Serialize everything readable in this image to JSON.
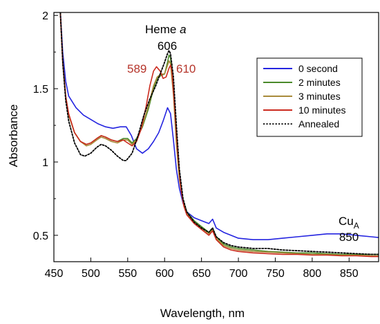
{
  "chart_data": {
    "type": "line",
    "xlabel": "Wavelength, nm",
    "ylabel": "Absorbance",
    "xlim": [
      450,
      890
    ],
    "ylim": [
      0.32,
      2.02
    ],
    "x_ticks": [
      450,
      500,
      550,
      600,
      650,
      700,
      750,
      800,
      850
    ],
    "y_ticks": [
      0.5,
      1,
      1.5,
      2
    ],
    "x_tick_labels": [
      "450",
      "500",
      "550",
      "600",
      "650",
      "700",
      "750",
      "800",
      "850"
    ],
    "y_tick_labels": [
      "0.5",
      "1",
      "1.5",
      "2"
    ],
    "legend_position": "top-right",
    "annotations": {
      "heme_prefix": "Heme ",
      "heme_italic": "a",
      "heme_value": "606",
      "peak_589": "589",
      "peak_610": "610",
      "cu_base": "Cu",
      "cu_sub": "A",
      "cu_value": "850"
    },
    "series": [
      {
        "name": "0 second",
        "color": "#2424e0",
        "dashed": false,
        "x": [
          458,
          462,
          466,
          470,
          480,
          490,
          500,
          510,
          520,
          530,
          540,
          548,
          555,
          562,
          570,
          578,
          585,
          592,
          598,
          604,
          608,
          612,
          616,
          620,
          625,
          630,
          640,
          650,
          660,
          665,
          670,
          680,
          690,
          700,
          720,
          740,
          760,
          780,
          800,
          820,
          840,
          860,
          880,
          890
        ],
        "y": [
          2.1,
          1.75,
          1.55,
          1.45,
          1.37,
          1.32,
          1.29,
          1.26,
          1.24,
          1.23,
          1.24,
          1.24,
          1.18,
          1.09,
          1.06,
          1.09,
          1.14,
          1.2,
          1.28,
          1.37,
          1.33,
          1.15,
          0.95,
          0.82,
          0.72,
          0.66,
          0.62,
          0.6,
          0.58,
          0.61,
          0.55,
          0.52,
          0.5,
          0.48,
          0.47,
          0.47,
          0.48,
          0.49,
          0.5,
          0.51,
          0.51,
          0.5,
          0.49,
          0.485
        ]
      },
      {
        "name": "2 minutes",
        "color": "#4a8a2a",
        "dashed": false,
        "x": [
          458,
          462,
          466,
          470,
          478,
          486,
          494,
          500,
          508,
          514,
          520,
          528,
          536,
          544,
          550,
          556,
          562,
          570,
          578,
          585,
          590,
          595,
          600,
          604,
          606,
          608,
          612,
          616,
          620,
          625,
          630,
          640,
          650,
          660,
          665,
          670,
          680,
          690,
          700,
          720,
          740,
          760,
          780,
          800,
          820,
          840,
          860,
          880,
          890
        ],
        "y": [
          2.1,
          1.7,
          1.45,
          1.32,
          1.2,
          1.14,
          1.12,
          1.13,
          1.16,
          1.18,
          1.17,
          1.15,
          1.14,
          1.16,
          1.16,
          1.13,
          1.16,
          1.24,
          1.36,
          1.5,
          1.57,
          1.59,
          1.6,
          1.68,
          1.73,
          1.71,
          1.5,
          1.15,
          0.9,
          0.74,
          0.66,
          0.6,
          0.56,
          0.52,
          0.55,
          0.49,
          0.44,
          0.42,
          0.41,
          0.4,
          0.39,
          0.385,
          0.38,
          0.38,
          0.375,
          0.37,
          0.37,
          0.37,
          0.37
        ]
      },
      {
        "name": "3 minutes",
        "color": "#a88a3a",
        "dashed": false,
        "x": [
          458,
          462,
          466,
          470,
          478,
          486,
          494,
          500,
          508,
          514,
          520,
          528,
          536,
          544,
          550,
          556,
          562,
          570,
          578,
          585,
          590,
          595,
          600,
          604,
          606,
          608,
          612,
          616,
          620,
          625,
          630,
          640,
          650,
          660,
          665,
          670,
          680,
          690,
          700,
          720,
          740,
          760,
          780,
          800,
          820,
          840,
          860,
          880,
          890
        ],
        "y": [
          2.1,
          1.68,
          1.44,
          1.32,
          1.2,
          1.14,
          1.11,
          1.12,
          1.15,
          1.17,
          1.16,
          1.14,
          1.13,
          1.15,
          1.15,
          1.12,
          1.15,
          1.25,
          1.38,
          1.52,
          1.58,
          1.6,
          1.6,
          1.66,
          1.69,
          1.67,
          1.46,
          1.12,
          0.88,
          0.73,
          0.65,
          0.59,
          0.55,
          0.51,
          0.54,
          0.48,
          0.43,
          0.41,
          0.4,
          0.39,
          0.385,
          0.38,
          0.375,
          0.37,
          0.37,
          0.365,
          0.365,
          0.36,
          0.36
        ]
      },
      {
        "name": "10 minutes",
        "color": "#cc2a1e",
        "dashed": false,
        "x": [
          458,
          462,
          466,
          470,
          478,
          486,
          494,
          500,
          508,
          514,
          520,
          528,
          536,
          544,
          550,
          556,
          562,
          568,
          575,
          580,
          585,
          589,
          594,
          598,
          602,
          606,
          608,
          610,
          614,
          618,
          622,
          626,
          630,
          640,
          650,
          660,
          665,
          670,
          680,
          690,
          700,
          720,
          740,
          760,
          780,
          800,
          820,
          840,
          860,
          880,
          890
        ],
        "y": [
          2.1,
          1.68,
          1.45,
          1.33,
          1.2,
          1.14,
          1.12,
          1.13,
          1.16,
          1.18,
          1.17,
          1.15,
          1.14,
          1.15,
          1.13,
          1.11,
          1.14,
          1.22,
          1.38,
          1.52,
          1.62,
          1.65,
          1.62,
          1.57,
          1.58,
          1.64,
          1.66,
          1.62,
          1.35,
          1.05,
          0.82,
          0.7,
          0.64,
          0.58,
          0.54,
          0.5,
          0.53,
          0.47,
          0.42,
          0.4,
          0.39,
          0.38,
          0.375,
          0.37,
          0.37,
          0.365,
          0.365,
          0.36,
          0.36,
          0.355,
          0.355
        ]
      },
      {
        "name": "Annealed",
        "color": "#000000",
        "dashed": true,
        "x": [
          458,
          462,
          466,
          470,
          478,
          486,
          492,
          500,
          508,
          514,
          520,
          528,
          536,
          544,
          548,
          556,
          564,
          572,
          580,
          588,
          594,
          600,
          604,
          606,
          608,
          612,
          616,
          620,
          625,
          630,
          640,
          650,
          660,
          665,
          670,
          680,
          690,
          700,
          720,
          740,
          760,
          780,
          800,
          820,
          840,
          860,
          880,
          890
        ],
        "y": [
          2.1,
          1.68,
          1.42,
          1.28,
          1.13,
          1.05,
          1.04,
          1.06,
          1.1,
          1.12,
          1.11,
          1.08,
          1.04,
          1.01,
          1.01,
          1.06,
          1.18,
          1.32,
          1.43,
          1.52,
          1.6,
          1.68,
          1.74,
          1.76,
          1.74,
          1.58,
          1.25,
          0.95,
          0.75,
          0.66,
          0.59,
          0.55,
          0.52,
          0.55,
          0.49,
          0.45,
          0.43,
          0.42,
          0.41,
          0.41,
          0.4,
          0.395,
          0.39,
          0.385,
          0.38,
          0.375,
          0.37,
          0.37
        ]
      }
    ]
  }
}
